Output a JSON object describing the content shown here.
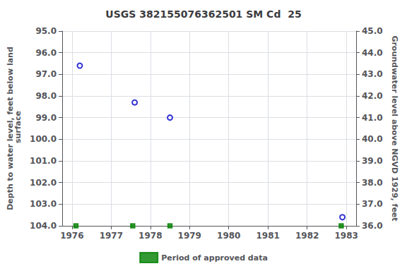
{
  "chart_data": {
    "type": "scatter",
    "title": "USGS 382155076362501 SM Cd  25",
    "series": [
      {
        "x": [
          1976.2,
          1977.6,
          1978.5,
          1982.9
        ],
        "values": [
          96.6,
          98.3,
          99.0,
          103.6
        ],
        "color": "#0000cc",
        "marker": "circle"
      },
      {
        "name": "Period of approved data",
        "x": [
          1976.1,
          1977.55,
          1978.5,
          1982.87
        ],
        "values": [
          104.0,
          104.0,
          104.0,
          104.0
        ],
        "color": "#008000",
        "marker": "square"
      }
    ],
    "xlim": [
      1975.75,
      1983.25
    ],
    "xticks": [
      1976,
      1977,
      1978,
      1979,
      1980,
      1981,
      1982,
      1983
    ],
    "ylim": [
      104.0,
      95.0
    ],
    "yticks": [
      {
        "value": 95,
        "label": "95.0"
      },
      {
        "value": 96,
        "label": "96.0"
      },
      {
        "value": 97,
        "label": "97.0"
      },
      {
        "value": 98,
        "label": "98.0"
      },
      {
        "value": 99,
        "label": "99.0"
      },
      {
        "value": 100,
        "label": "100.0"
      },
      {
        "value": 101,
        "label": "101.0"
      },
      {
        "value": 102,
        "label": "102.0"
      },
      {
        "value": 103,
        "label": "103.0"
      },
      {
        "value": 104,
        "label": "104.0"
      }
    ],
    "y2lim": [
      36.0,
      45.0
    ],
    "y2ticks": [
      {
        "value": 45,
        "label": "45.0"
      },
      {
        "value": 44,
        "label": "44.0"
      },
      {
        "value": 43,
        "label": "43.0"
      },
      {
        "value": 42,
        "label": "42.0"
      },
      {
        "value": 41,
        "label": "41.0"
      },
      {
        "value": 40,
        "label": "40.0"
      },
      {
        "value": 39,
        "label": "39.0"
      },
      {
        "value": 38,
        "label": "38.0"
      },
      {
        "value": 37,
        "label": "37.0"
      },
      {
        "value": 36,
        "label": "36.0"
      }
    ],
    "ylabel": "Depth to water level, feet below land\n surface",
    "y2label": "Groundwater level above NGVD 1929, feet",
    "grid": true,
    "legend": "bottom"
  }
}
